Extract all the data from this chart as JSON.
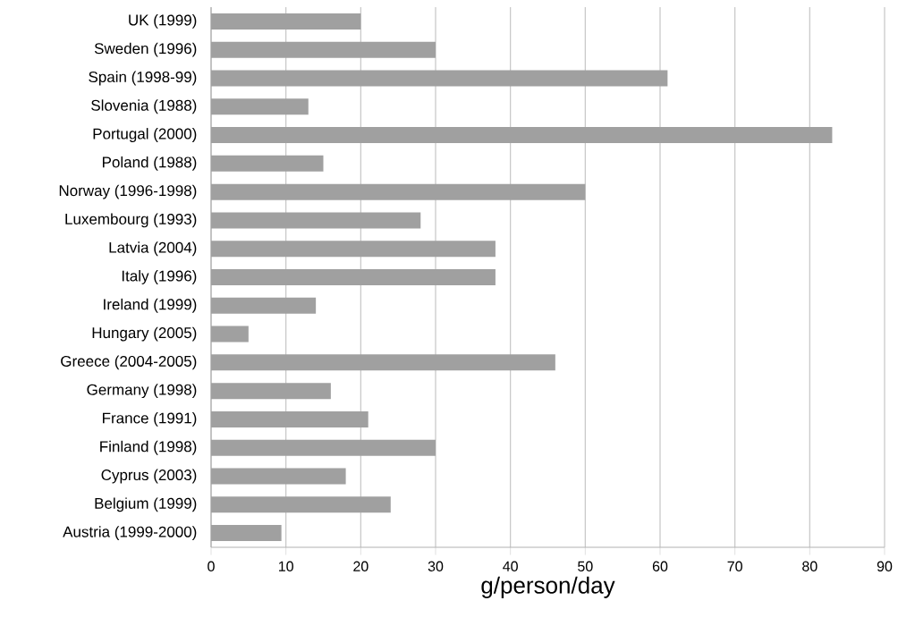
{
  "chart_data": {
    "type": "bar",
    "orientation": "horizontal",
    "xlabel": "g/person/day",
    "categories": [
      "UK (1999)",
      "Sweden (1996)",
      "Spain (1998-99)",
      "Slovenia (1988)",
      "Portugal (2000)",
      "Poland (1988)",
      "Norway (1996-1998)",
      "Luxembourg (1993)",
      "Latvia (2004)",
      "Italy (1996)",
      "Ireland (1999)",
      "Hungary (2005)",
      "Greece (2004-2005)",
      "Germany (1998)",
      "France (1991)",
      "Finland (1998)",
      "Cyprus (2003)",
      "Belgium (1999)",
      "Austria (1999-2000)"
    ],
    "values": [
      20,
      30,
      61,
      13,
      83,
      15,
      50,
      28,
      38,
      38,
      14,
      5,
      46,
      16,
      21,
      30,
      18,
      24,
      9.4
    ],
    "color": "#a0a0a0",
    "xlim": [
      0,
      90
    ],
    "xticks": [
      0,
      10,
      20,
      30,
      40,
      50,
      60,
      70,
      80,
      90
    ],
    "grid": "x"
  }
}
